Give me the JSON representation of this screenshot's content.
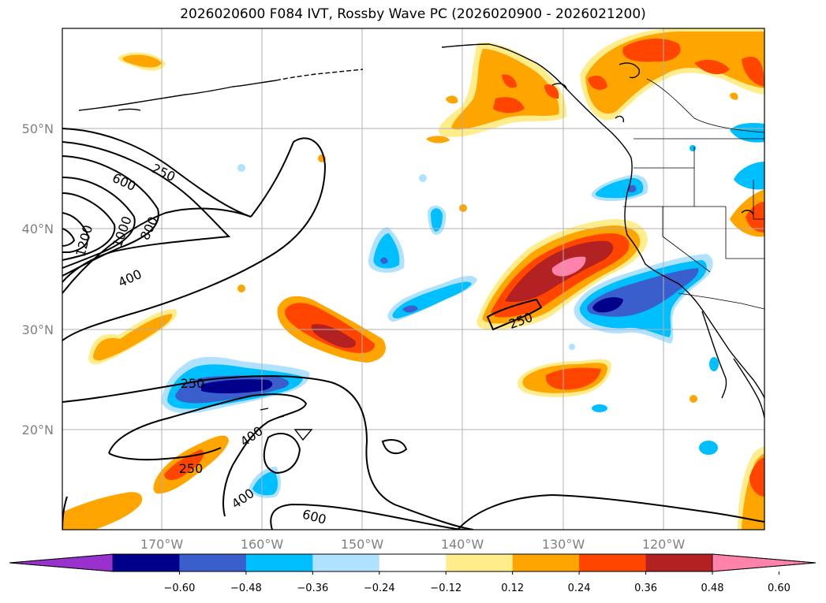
{
  "title": "2026020600 F084 IVT, Rossby Wave PC (2026020900 - 2026021200)",
  "map": {
    "lat_labels": [
      "50°N",
      "40°N",
      "30°N",
      "20°N"
    ],
    "lon_labels": [
      "170°W",
      "160°W",
      "150°W",
      "140°W",
      "130°W",
      "120°W"
    ],
    "contour_labels": [
      "250",
      "600",
      "1200",
      "1000",
      "800",
      "400",
      "250",
      "250",
      "400",
      "250",
      "400",
      "600"
    ]
  },
  "colorbar": {
    "ticks": [
      "−0.60",
      "−0.48",
      "−0.36",
      "−0.24",
      "−0.12",
      "0.12",
      "0.24",
      "0.36",
      "0.48",
      "0.60"
    ],
    "colors": [
      "#9932cc",
      "#00008b",
      "#3a5fcd",
      "#00bfff",
      "#b0e2ff",
      "#ffffff",
      "#ffec8b",
      "#ffa500",
      "#ff4500",
      "#b22222",
      "#ff82ab"
    ]
  }
}
